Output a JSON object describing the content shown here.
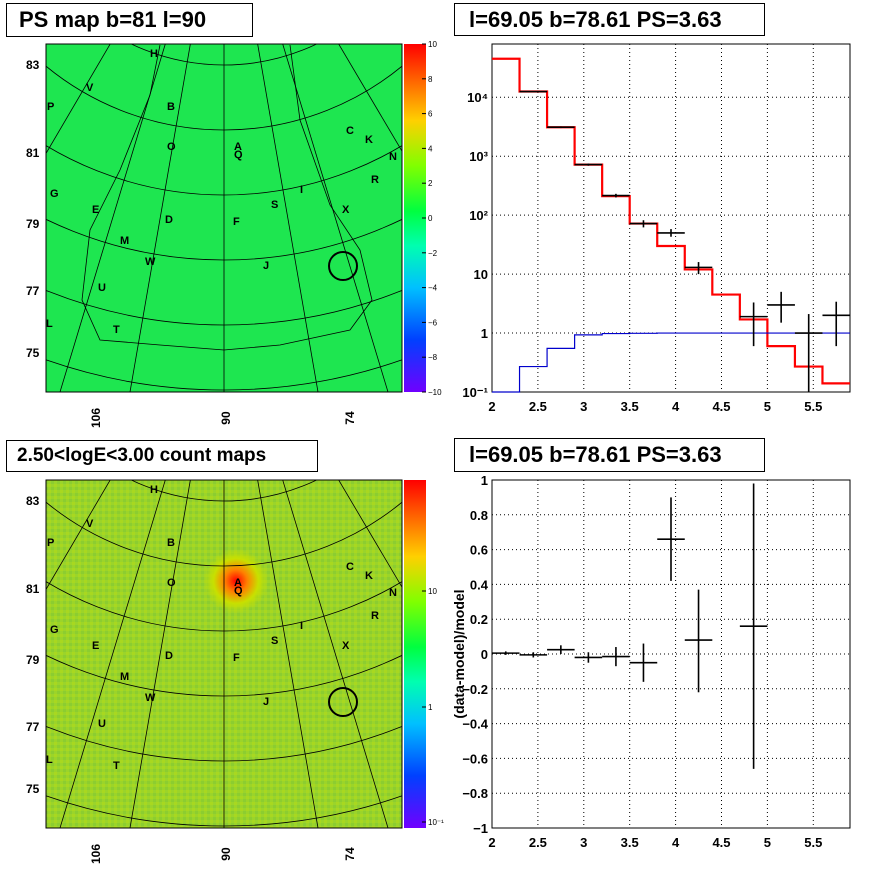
{
  "panels": {
    "ps_map": {
      "title": "PS map b=81 l=90",
      "y_ticks": [
        "83",
        "81",
        "79",
        "77",
        "75"
      ],
      "x_ticks": [
        "106",
        "90",
        "74"
      ],
      "colorbar_ticks": [
        "10",
        "8",
        "6",
        "4",
        "2",
        "0",
        "−2",
        "−4",
        "−6",
        "−8",
        "−10"
      ],
      "sources": [
        "H",
        "V",
        "P",
        "B",
        "C",
        "K",
        "O",
        "A",
        "Q",
        "N",
        "R",
        "G",
        "E",
        "I",
        "S",
        "X",
        "D",
        "F",
        "M",
        "W",
        "J",
        "U",
        "L",
        "T"
      ]
    },
    "count_map": {
      "title": "2.50<logE<3.00 count maps",
      "y_ticks": [
        "83",
        "81",
        "79",
        "77",
        "75"
      ],
      "x_ticks": [
        "106",
        "90",
        "74"
      ],
      "colorbar_ticks": [
        "10",
        "1",
        "10⁻¹"
      ]
    },
    "spectrum": {
      "title": "l=69.05 b=78.61 PS=3.63"
    },
    "residual": {
      "title": "l=69.05 b=78.61 PS=3.63"
    }
  },
  "chart_data": [
    {
      "type": "heatmap",
      "title": "PS map b=81 l=90",
      "y_ticks": [
        83,
        81,
        79,
        77,
        75
      ],
      "x_ticks": [
        106,
        90,
        74
      ],
      "colorbar_range": [
        -10,
        10
      ],
      "colorbar_ticks": [
        10,
        8,
        6,
        4,
        2,
        0,
        -2,
        -4,
        -6,
        -8,
        -10
      ]
    },
    {
      "type": "line",
      "title": "l=69.05 b=78.61 PS=3.63",
      "xlim": [
        2,
        5.9
      ],
      "ylim": [
        0.1,
        80000
      ],
      "log_y": true,
      "grid": true,
      "x_tick_labels": [
        "2",
        "2.5",
        "3",
        "3.5",
        "4",
        "4.5",
        "5",
        "5.5"
      ],
      "y_tick_labels": [
        "10⁻¹",
        "1",
        "10",
        "10²",
        "10³",
        "10⁴"
      ],
      "series": [
        {
          "color": "#ff0000",
          "bins": [
            2.0,
            2.3,
            2.6,
            2.9,
            3.2,
            3.5,
            3.8,
            4.1,
            4.4,
            4.7,
            5.0,
            5.3,
            5.6,
            5.9
          ],
          "values": [
            45000,
            12500,
            3100,
            720,
            210,
            72,
            30,
            12,
            4.5,
            1.7,
            0.6,
            0.27,
            0.14
          ]
        },
        {
          "color": "#0000cc",
          "bins": [
            2.0,
            2.3,
            2.6,
            2.9,
            3.2,
            3.5,
            3.8,
            4.1,
            4.4,
            4.7,
            5.0,
            5.3,
            5.6,
            5.9
          ],
          "values": [
            0.0,
            0.27,
            0.55,
            0.93,
            0.98,
            0.99,
            1.0,
            1.0,
            1.0,
            1.0,
            1.0,
            1.0,
            1.0
          ]
        }
      ],
      "points": [
        {
          "x": 2.45,
          "y": 12500,
          "xerr": 0.15,
          "ylo": 12300,
          "yhi": 12700
        },
        {
          "x": 2.75,
          "y": 3100,
          "xerr": 0.15,
          "ylo": 3000,
          "yhi": 3200
        },
        {
          "x": 3.05,
          "y": 720,
          "xerr": 0.15,
          "ylo": 690,
          "yhi": 750
        },
        {
          "x": 3.35,
          "y": 215,
          "xerr": 0.15,
          "ylo": 200,
          "yhi": 230
        },
        {
          "x": 3.65,
          "y": 72,
          "xerr": 0.15,
          "ylo": 62,
          "yhi": 82
        },
        {
          "x": 3.95,
          "y": 50,
          "xerr": 0.15,
          "ylo": 43,
          "yhi": 58
        },
        {
          "x": 4.25,
          "y": 13,
          "xerr": 0.15,
          "ylo": 10,
          "yhi": 16
        },
        {
          "x": 4.85,
          "y": 1.9,
          "xerr": 0.15,
          "ylo": 0.6,
          "yhi": 3.3
        },
        {
          "x": 5.15,
          "y": 3.0,
          "xerr": 0.15,
          "ylo": 1.5,
          "yhi": 5.0
        },
        {
          "x": 5.45,
          "y": 1.0,
          "xerr": 0.15,
          "ylo": 0.1,
          "yhi": 2.1
        },
        {
          "x": 5.75,
          "y": 2.0,
          "xerr": 0.15,
          "ylo": 0.6,
          "yhi": 3.4
        }
      ]
    },
    {
      "type": "heatmap",
      "title": "2.50<logE<3.00 count maps",
      "y_ticks": [
        83,
        81,
        79,
        77,
        75
      ],
      "x_ticks": [
        106,
        90,
        74
      ],
      "colorbar_log": true,
      "colorbar_ticks": [
        10,
        1,
        0.1
      ]
    },
    {
      "type": "scatter",
      "title": "l=69.05 b=78.61 PS=3.63",
      "ylabel": "(data-model)/model",
      "xlim": [
        2,
        5.9
      ],
      "ylim": [
        -1,
        1
      ],
      "grid": true,
      "x_tick_labels": [
        "2",
        "2.5",
        "3",
        "3.5",
        "4",
        "4.5",
        "5",
        "5.5"
      ],
      "y_tick_labels": [
        "−1",
        "−0.8",
        "−0.6",
        "−0.4",
        "−0.2",
        "0",
        "0.2",
        "0.4",
        "0.6",
        "0.8",
        "1"
      ],
      "points": [
        {
          "x": 2.15,
          "y": 0.005,
          "xerr": 0.15,
          "ylo": -0.005,
          "yhi": 0.015
        },
        {
          "x": 2.45,
          "y": -0.005,
          "xerr": 0.15,
          "ylo": -0.02,
          "yhi": 0.01
        },
        {
          "x": 2.75,
          "y": 0.025,
          "xerr": 0.15,
          "ylo": 0.0,
          "yhi": 0.05
        },
        {
          "x": 3.05,
          "y": -0.02,
          "xerr": 0.15,
          "ylo": -0.05,
          "yhi": 0.01
        },
        {
          "x": 3.35,
          "y": -0.015,
          "xerr": 0.15,
          "ylo": -0.07,
          "yhi": 0.04
        },
        {
          "x": 3.65,
          "y": -0.05,
          "xerr": 0.15,
          "ylo": -0.16,
          "yhi": 0.06
        },
        {
          "x": 3.95,
          "y": 0.66,
          "xerr": 0.15,
          "ylo": 0.42,
          "yhi": 0.9
        },
        {
          "x": 4.25,
          "y": 0.08,
          "xerr": 0.15,
          "ylo": -0.22,
          "yhi": 0.37
        },
        {
          "x": 4.85,
          "y": 0.16,
          "xerr": 0.15,
          "ylo": -0.66,
          "yhi": 0.98
        }
      ]
    }
  ]
}
